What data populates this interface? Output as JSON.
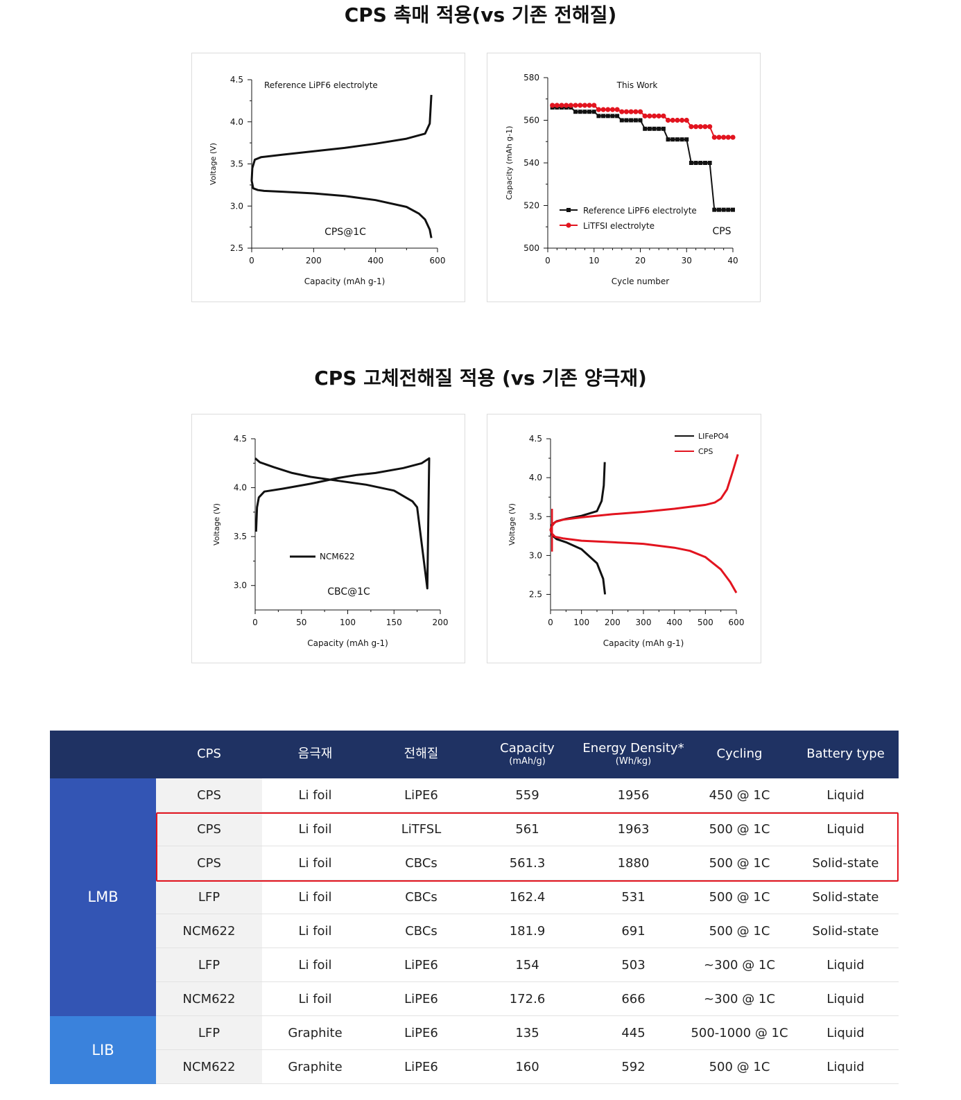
{
  "sections": {
    "catalyst_title": "CPS 촉매 적용(vs 기존 전해질)",
    "solid_title": "CPS 고체전해질 적용 (vs 기존 양극재)"
  },
  "chart_data": [
    {
      "type": "line",
      "id": "chart1",
      "title": "",
      "annotations": [
        "Reference LiPF6 electrolyte",
        "CPS@1C"
      ],
      "xlabel": "Capacity (mAh g-1)",
      "ylabel": "Voltage (V)",
      "xlim": [
        0,
        600
      ],
      "ylim": [
        2.5,
        4.5
      ],
      "x_ticks": [
        0,
        200,
        400,
        600
      ],
      "y_ticks": [
        2.5,
        3.0,
        3.5,
        4.0,
        4.5
      ],
      "series": [
        {
          "color": "#111111",
          "x": [
            580,
            575,
            560,
            540,
            500,
            400,
            300,
            200,
            100,
            40,
            20,
            5,
            0,
            2,
            10,
            30,
            100,
            200,
            300,
            400,
            500,
            560,
            575,
            580
          ],
          "y": [
            2.62,
            2.72,
            2.84,
            2.91,
            2.99,
            3.07,
            3.12,
            3.15,
            3.17,
            3.18,
            3.19,
            3.21,
            3.3,
            3.45,
            3.55,
            3.58,
            3.61,
            3.65,
            3.69,
            3.74,
            3.8,
            3.86,
            3.98,
            4.32
          ]
        }
      ]
    },
    {
      "type": "line",
      "id": "chart2",
      "title": "This Work",
      "annotations": [
        "CPS"
      ],
      "xlabel": "Cycle number",
      "ylabel": "Capacity (mAh g-1)",
      "xlim": [
        0,
        40
      ],
      "ylim": [
        500,
        580
      ],
      "x_ticks": [
        0,
        10,
        20,
        30,
        40
      ],
      "y_ticks": [
        500,
        520,
        540,
        560,
        580
      ],
      "legend_position": "bottom-left",
      "series": [
        {
          "name": "Reference LiPF6 electrolyte",
          "color": "#111111",
          "marker": "square",
          "x": [
            1,
            2,
            3,
            4,
            5,
            6,
            7,
            8,
            9,
            10,
            11,
            12,
            13,
            14,
            15,
            16,
            17,
            18,
            19,
            20,
            21,
            22,
            23,
            24,
            25,
            26,
            27,
            28,
            29,
            30,
            31,
            32,
            33,
            34,
            35,
            36,
            37,
            38,
            39,
            40
          ],
          "y": [
            566,
            566,
            566,
            566,
            566,
            564,
            564,
            564,
            564,
            564,
            562,
            562,
            562,
            562,
            562,
            560,
            560,
            560,
            560,
            560,
            556,
            556,
            556,
            556,
            556,
            551,
            551,
            551,
            551,
            551,
            540,
            540,
            540,
            540,
            540,
            518,
            518,
            518,
            518,
            518
          ]
        },
        {
          "name": "LiTFSI electrolyte",
          "color": "#e2141f",
          "marker": "circle",
          "x": [
            1,
            2,
            3,
            4,
            5,
            6,
            7,
            8,
            9,
            10,
            11,
            12,
            13,
            14,
            15,
            16,
            17,
            18,
            19,
            20,
            21,
            22,
            23,
            24,
            25,
            26,
            27,
            28,
            29,
            30,
            31,
            32,
            33,
            34,
            35,
            36,
            37,
            38,
            39,
            40
          ],
          "y": [
            567,
            567,
            567,
            567,
            567,
            567,
            567,
            567,
            567,
            567,
            565,
            565,
            565,
            565,
            565,
            564,
            564,
            564,
            564,
            564,
            562,
            562,
            562,
            562,
            562,
            560,
            560,
            560,
            560,
            560,
            557,
            557,
            557,
            557,
            557,
            552,
            552,
            552,
            552,
            552
          ]
        }
      ]
    },
    {
      "type": "line",
      "id": "chart3",
      "title": "",
      "annotations": [
        "CBC@1C"
      ],
      "xlabel": "Capacity (mAh g-1)",
      "ylabel": "Voltage (V)",
      "xlim": [
        0,
        200
      ],
      "ylim": [
        2.75,
        4.5
      ],
      "x_ticks": [
        0,
        50,
        100,
        150,
        200
      ],
      "y_ticks": [
        3.0,
        3.5,
        4.0,
        4.5
      ],
      "legend_position": "center-left",
      "series": [
        {
          "name": "NCM622",
          "color": "#111111",
          "x": [
            1,
            2,
            4,
            10,
            30,
            60,
            90,
            110,
            130,
            160,
            180,
            188,
            186,
            175,
            170,
            150,
            120,
            90,
            60,
            40,
            20,
            5,
            0
          ],
          "y": [
            3.55,
            3.8,
            3.9,
            3.96,
            3.99,
            4.04,
            4.1,
            4.13,
            4.15,
            4.2,
            4.25,
            4.3,
            2.97,
            3.8,
            3.86,
            3.97,
            4.03,
            4.07,
            4.11,
            4.15,
            4.21,
            4.26,
            4.3
          ]
        }
      ]
    },
    {
      "type": "line",
      "id": "chart4",
      "title": "",
      "xlabel": "Capacity (mAh g-1)",
      "ylabel": "Voltage (V)",
      "xlim": [
        0,
        600
      ],
      "ylim": [
        2.3,
        4.5
      ],
      "x_ticks": [
        0,
        100,
        200,
        300,
        400,
        500,
        600
      ],
      "y_ticks": [
        2.5,
        3.0,
        3.5,
        4.0,
        4.5
      ],
      "legend_position": "top-right",
      "series": [
        {
          "name": "LIFePO4",
          "color": "#111111",
          "x": [
            176,
            170,
            150,
            100,
            50,
            20,
            5,
            0,
            5,
            20,
            50,
            100,
            150,
            165,
            172,
            175
          ],
          "y": [
            2.5,
            2.7,
            2.9,
            3.08,
            3.17,
            3.21,
            3.26,
            3.33,
            3.4,
            3.44,
            3.47,
            3.51,
            3.57,
            3.7,
            3.9,
            4.2
          ]
        },
        {
          "name": "CPS",
          "color": "#e2141f",
          "x": [
            600,
            580,
            550,
            500,
            450,
            400,
            300,
            250,
            200,
            100,
            40,
            15,
            5,
            0,
            5,
            15,
            40,
            100,
            200,
            300,
            400,
            500,
            530,
            550,
            570,
            590,
            605
          ],
          "y": [
            2.52,
            2.66,
            2.82,
            2.98,
            3.06,
            3.1,
            3.15,
            3.16,
            3.17,
            3.19,
            3.22,
            3.24,
            3.28,
            3.33,
            3.38,
            3.43,
            3.46,
            3.49,
            3.53,
            3.56,
            3.6,
            3.65,
            3.68,
            3.73,
            3.85,
            4.1,
            4.3
          ]
        }
      ]
    }
  ],
  "chart2_texts": {
    "legend_ref": "Reference LiPF6 electrolyte",
    "legend_litfsi": "LiTFSI electrolyte"
  },
  "chart4_texts": {
    "legend_lifepo4": "LIFePO4",
    "legend_cps": "CPS"
  },
  "table": {
    "headers": {
      "cps": "CPS",
      "anode": "음극재",
      "electrolyte": "전해질",
      "capacity": "Capacity",
      "capacity_unit": "(mAh/g)",
      "energy": "Energy Density*",
      "energy_unit": "(Wh/kg)",
      "cycling": "Cycling",
      "battery_type": "Battery type"
    },
    "groups": [
      {
        "label": "LMB",
        "color": "#3355b4",
        "rows": [
          [
            "CPS",
            "Li foil",
            "LiPE6",
            "559",
            "1956",
            "450 @ 1C",
            "Liquid"
          ],
          [
            "CPS",
            "Li foil",
            "LiTFSL",
            "561",
            "1963",
            "500 @ 1C",
            "Liquid"
          ],
          [
            "CPS",
            "Li foil",
            "CBCs",
            "561.3",
            "1880",
            "500 @ 1C",
            "Solid-state"
          ],
          [
            "LFP",
            "Li foil",
            "CBCs",
            "162.4",
            "531",
            "500 @ 1C",
            "Solid-state"
          ],
          [
            "NCM622",
            "Li foil",
            "CBCs",
            "181.9",
            "691",
            "500 @ 1C",
            "Solid-state"
          ],
          [
            "LFP",
            "Li foil",
            "LiPE6",
            "154",
            "503",
            "~300 @ 1C",
            "Liquid"
          ],
          [
            "NCM622",
            "Li foil",
            "LiPE6",
            "172.6",
            "666",
            "~300 @ 1C",
            "Liquid"
          ]
        ]
      },
      {
        "label": "LIB",
        "color": "#3a82dc",
        "rows": [
          [
            "LFP",
            "Graphite",
            "LiPE6",
            "135",
            "445",
            "500-1000 @ 1C",
            "Liquid"
          ],
          [
            "NCM622",
            "Graphite",
            "LiPE6",
            "160",
            "592",
            "500 @ 1C",
            "Liquid"
          ]
        ]
      }
    ]
  }
}
